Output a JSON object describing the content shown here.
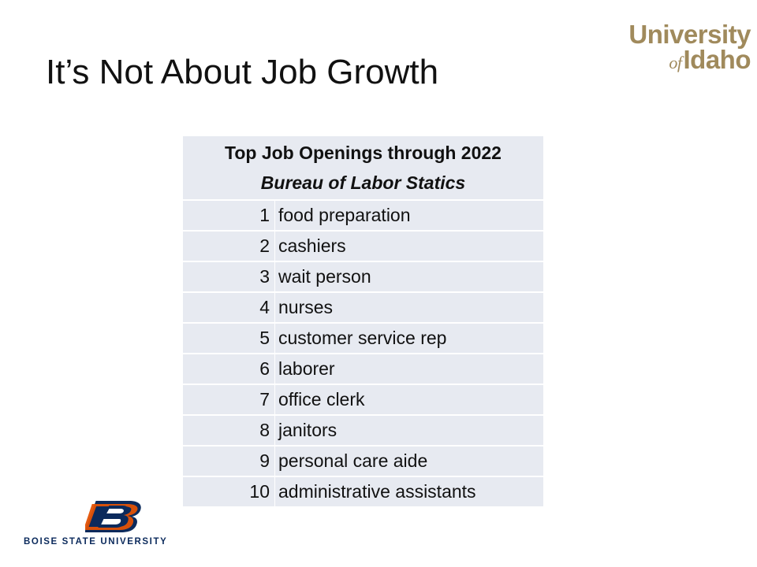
{
  "slide": {
    "title": "It’s Not About Job Growth"
  },
  "logos": {
    "uidaho": {
      "line1": "University",
      "of": "of",
      "line2": "Idaho",
      "color": "#a08a5c"
    },
    "bsu": {
      "wordmark": "BOISE STATE UNIVERSITY",
      "letter": "B",
      "primary_color": "#0b2a5c",
      "accent_color": "#e35205"
    }
  },
  "table": {
    "title": "Top Job Openings through 2022",
    "subtitle": "Bureau of Labor Statics",
    "fill_color": "#e7eaf1",
    "rows": [
      {
        "rank": "1",
        "title": "food preparation"
      },
      {
        "rank": "2",
        "title": "cashiers"
      },
      {
        "rank": "3",
        "title": "wait person"
      },
      {
        "rank": "4",
        "title": "nurses"
      },
      {
        "rank": "5",
        "title": "customer service rep"
      },
      {
        "rank": "6",
        "title": "laborer"
      },
      {
        "rank": "7",
        "title": "office clerk"
      },
      {
        "rank": "8",
        "title": "janitors"
      },
      {
        "rank": "9",
        "title": "personal care aide"
      },
      {
        "rank": "10",
        "title": "administrative assistants"
      }
    ]
  }
}
